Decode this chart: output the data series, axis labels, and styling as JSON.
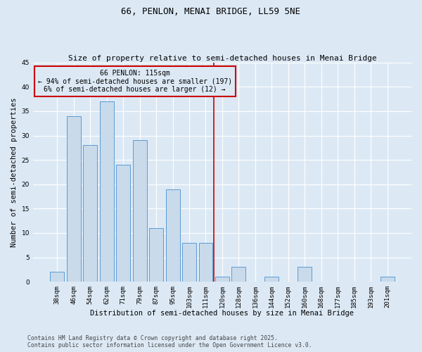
{
  "title": "66, PENLON, MENAI BRIDGE, LL59 5NE",
  "subtitle": "Size of property relative to semi-detached houses in Menai Bridge",
  "xlabel": "Distribution of semi-detached houses by size in Menai Bridge",
  "ylabel": "Number of semi-detached properties",
  "bar_labels": [
    "38sqm",
    "46sqm",
    "54sqm",
    "62sqm",
    "71sqm",
    "79sqm",
    "87sqm",
    "95sqm",
    "103sqm",
    "111sqm",
    "120sqm",
    "128sqm",
    "136sqm",
    "144sqm",
    "152sqm",
    "160sqm",
    "168sqm",
    "177sqm",
    "185sqm",
    "193sqm",
    "201sqm"
  ],
  "bar_values": [
    2,
    34,
    28,
    37,
    24,
    29,
    11,
    19,
    8,
    8,
    1,
    3,
    0,
    1,
    0,
    3,
    0,
    0,
    0,
    0,
    1
  ],
  "bar_color": "#c9daea",
  "bar_edgecolor": "#5b9bd5",
  "background_color": "#dce9f5",
  "grid_color": "#ffffff",
  "vline_x": 9.5,
  "vline_color": "#cc0000",
  "annotation_title": "66 PENLON: 115sqm",
  "annotation_line1": "← 94% of semi-detached houses are smaller (197)",
  "annotation_line2": "6% of semi-detached houses are larger (12) →",
  "annotation_box_color": "#cc0000",
  "ylim": [
    0,
    45
  ],
  "yticks": [
    0,
    5,
    10,
    15,
    20,
    25,
    30,
    35,
    40,
    45
  ],
  "footer_line1": "Contains HM Land Registry data © Crown copyright and database right 2025.",
  "footer_line2": "Contains public sector information licensed under the Open Government Licence v3.0.",
  "title_fontsize": 9,
  "subtitle_fontsize": 8,
  "axis_label_fontsize": 7.5,
  "tick_fontsize": 6.5,
  "annotation_fontsize": 7,
  "footer_fontsize": 5.8
}
